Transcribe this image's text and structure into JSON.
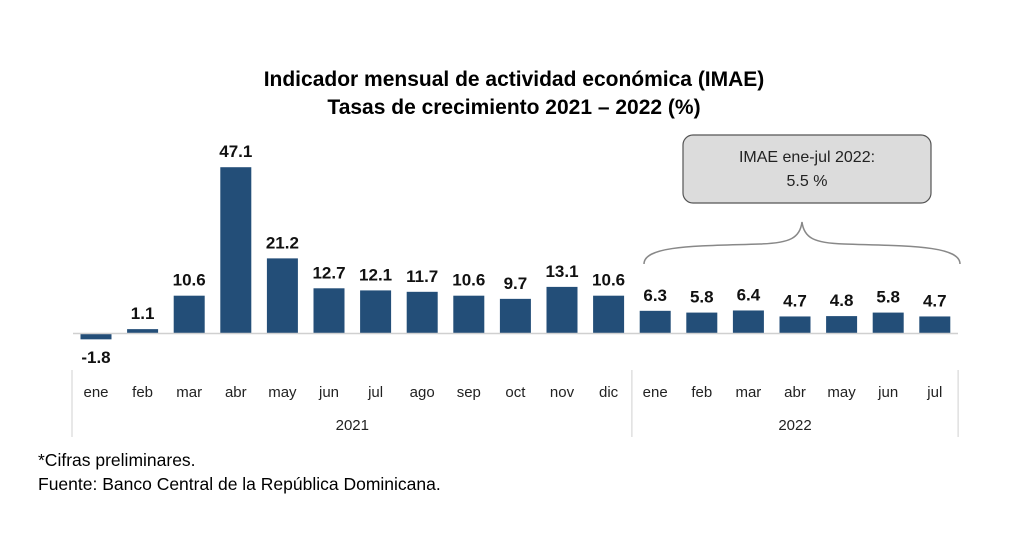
{
  "chart_data": {
    "type": "bar",
    "title": "Indicador mensual de actividad económica (IMAE)",
    "subtitle": "Tasas de crecimiento 2021 – 2022 (%)",
    "categories": [
      "ene",
      "feb",
      "mar",
      "abr",
      "may",
      "jun",
      "jul",
      "ago",
      "sep",
      "oct",
      "nov",
      "dic",
      "ene",
      "feb",
      "mar",
      "abr",
      "may",
      "jun",
      "jul"
    ],
    "groups": [
      {
        "label": "2021",
        "count": 12
      },
      {
        "label": "2022",
        "count": 7
      }
    ],
    "values": [
      -1.8,
      1.1,
      10.6,
      47.1,
      21.2,
      12.7,
      12.1,
      11.7,
      10.6,
      9.7,
      13.1,
      10.6,
      6.3,
      5.8,
      6.4,
      4.7,
      4.8,
      5.8,
      4.7
    ],
    "labels": [
      "-1.8",
      "1.1",
      "10.6",
      "47.1",
      "21.2",
      "12.7",
      "12.1",
      "11.7",
      "10.6",
      "9.7",
      "13.1",
      "10.6",
      "6.3",
      "5.8",
      "6.4",
      "4.7",
      "4.8",
      "5.8",
      "4.7"
    ],
    "bar_color": "#234e78",
    "annotation": {
      "line1": "IMAE ene-jul 2022:",
      "line2": "5.5 %"
    },
    "xlabel": "",
    "ylabel": "",
    "grid": false
  },
  "notes": {
    "preliminary": "*Cifras preliminares.",
    "source": "Fuente: Banco Central de la República Dominicana."
  }
}
